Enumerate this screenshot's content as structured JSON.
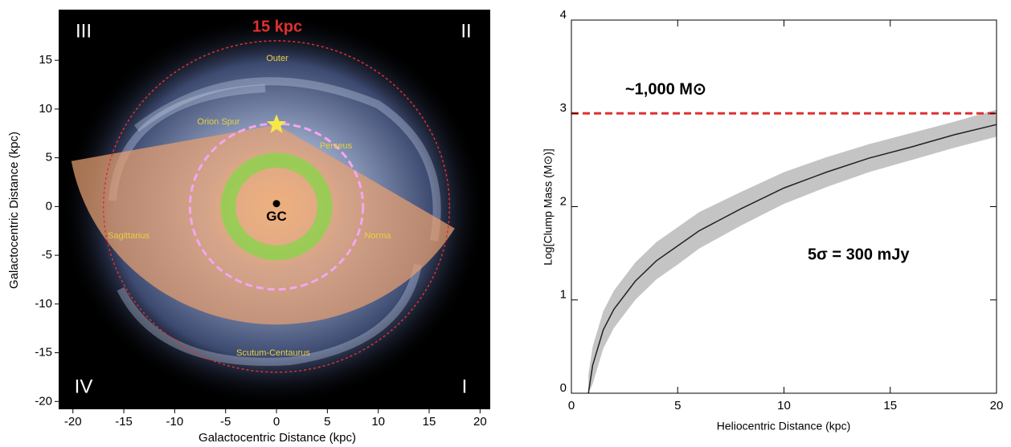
{
  "chart_data": [
    {
      "type": "map",
      "title": "15 kpc",
      "xlabel": "Galactocentric Distance (kpc)",
      "ylabel": "Galactocentric Distance (kpc)",
      "xlim": [
        -21.4,
        21
      ],
      "ylim": [
        -20.8,
        20.2
      ],
      "xticks": [
        -20,
        -15,
        -10,
        -5,
        0,
        5,
        10,
        15,
        20
      ],
      "yticks": [
        -20,
        -15,
        -10,
        -5,
        0,
        5,
        10,
        15
      ],
      "quadrants": [
        "III",
        "II",
        "IV",
        "I"
      ],
      "arms": [
        "Outer",
        "Orion Spur",
        "Perseus",
        "Sagittarius",
        "Norma",
        "Scutum-Centaurus"
      ],
      "gc": {
        "label": "GC",
        "x": 0,
        "y": 0.3
      },
      "sun": {
        "x": 0,
        "y": 8.4,
        "color": "#f7e84a"
      },
      "circles": [
        {
          "radius": 17,
          "color": "#e03030",
          "style": "dotted"
        },
        {
          "radius": 8.5,
          "color": "#f4a6f0",
          "style": "dashed"
        }
      ],
      "annulus": {
        "inner": 4,
        "outer": 5.5,
        "color": "#8fd14f"
      },
      "wedge": {
        "center": [
          0,
          8.4
        ],
        "radius": 20.5,
        "angles": [
          190.5,
          328.7
        ],
        "color": "#e8a070"
      }
    },
    {
      "type": "line",
      "xlabel": "Heliocentric Distance (kpc)",
      "ylabel": "Log[Clump Mass (M⊙)]",
      "xlim": [
        0,
        20
      ],
      "ylim": [
        0,
        4
      ],
      "xticks": [
        0,
        5,
        10,
        15,
        20
      ],
      "yticks": [
        0,
        1,
        2,
        3,
        4
      ],
      "x": [
        0.8,
        1,
        1.5,
        2,
        3,
        4,
        5,
        6,
        8,
        10,
        12,
        14,
        16,
        18,
        20
      ],
      "series": [
        {
          "color": "#222222",
          "values": [
            0,
            0.3,
            0.68,
            0.9,
            1.2,
            1.42,
            1.58,
            1.74,
            1.98,
            2.2,
            2.37,
            2.52,
            2.64,
            2.77,
            2.88
          ]
        }
      ],
      "band": {
        "color": "#c4c4c4",
        "lower": [
          0,
          0.1,
          0.48,
          0.7,
          1.0,
          1.22,
          1.38,
          1.55,
          1.8,
          2.03,
          2.21,
          2.37,
          2.5,
          2.63,
          2.75
        ],
        "upper": [
          0.2,
          0.5,
          0.88,
          1.1,
          1.4,
          1.62,
          1.78,
          1.94,
          2.16,
          2.37,
          2.53,
          2.67,
          2.79,
          2.91,
          3.04
        ]
      },
      "hline": {
        "value": 3,
        "color": "#e03030"
      },
      "annotations": [
        "~1,000 M⊙",
        "5σ = 300 mJy"
      ]
    }
  ]
}
